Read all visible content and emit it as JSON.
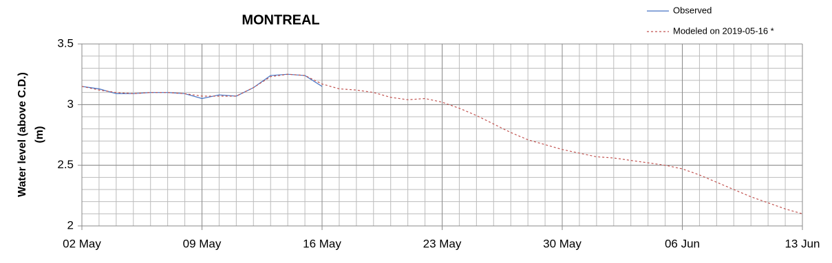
{
  "chart_data": {
    "type": "line",
    "title": "MONTREAL",
    "ylabel": [
      "Water level (above C.D.)",
      "(m)"
    ],
    "x": [
      0,
      1,
      2,
      3,
      4,
      5,
      6,
      7,
      8,
      9,
      10,
      11,
      12,
      13,
      14,
      15,
      16,
      17,
      18,
      19,
      20,
      21,
      22,
      23,
      24,
      25,
      26,
      27,
      28,
      29,
      30,
      31,
      32,
      33,
      34,
      35,
      36,
      37,
      38,
      39,
      40,
      41,
      42
    ],
    "xlim": [
      0,
      42
    ],
    "xticks": [
      {
        "value": 0,
        "label": "02 May"
      },
      {
        "value": 7,
        "label": "09 May"
      },
      {
        "value": 14,
        "label": "16 May"
      },
      {
        "value": 21,
        "label": "23 May"
      },
      {
        "value": 28,
        "label": "30 May"
      },
      {
        "value": 35,
        "label": "06 Jun"
      },
      {
        "value": 42,
        "label": "13 Jun"
      }
    ],
    "ylim": [
      2,
      3.5
    ],
    "yticks": [
      2,
      {
        "value": 2.5,
        "label": "2.5"
      },
      3,
      {
        "value": 3.5,
        "label": "3.5"
      }
    ],
    "grid": true,
    "x_minor_step": 1,
    "y_minor_step": 0.1,
    "legend": "top-right",
    "series": [
      {
        "name": "Observed",
        "color": "#4472c4",
        "dash": false,
        "values": [
          3.15,
          3.13,
          3.09,
          3.09,
          3.1,
          3.1,
          3.09,
          3.05,
          3.08,
          3.07,
          3.14,
          3.24,
          3.25,
          3.24,
          3.15,
          null,
          null,
          null,
          null,
          null,
          null,
          null,
          null,
          null,
          null,
          null,
          null,
          null,
          null,
          null,
          null,
          null,
          null,
          null,
          null,
          null,
          null,
          null,
          null,
          null,
          null,
          null,
          null
        ]
      },
      {
        "name": "Modeled on 2019-05-16 *",
        "color": "#c0504d",
        "dash": true,
        "values": [
          3.15,
          3.12,
          3.1,
          3.09,
          3.1,
          3.1,
          3.09,
          3.07,
          3.07,
          3.07,
          3.14,
          3.23,
          3.25,
          3.24,
          3.17,
          3.13,
          3.12,
          3.1,
          3.06,
          3.04,
          3.05,
          3.02,
          2.97,
          2.91,
          2.84,
          2.77,
          2.71,
          2.67,
          2.63,
          2.6,
          2.57,
          2.56,
          2.54,
          2.52,
          2.5,
          2.47,
          2.42,
          2.36,
          2.3,
          2.24,
          2.19,
          2.14,
          2.1
        ]
      }
    ]
  }
}
